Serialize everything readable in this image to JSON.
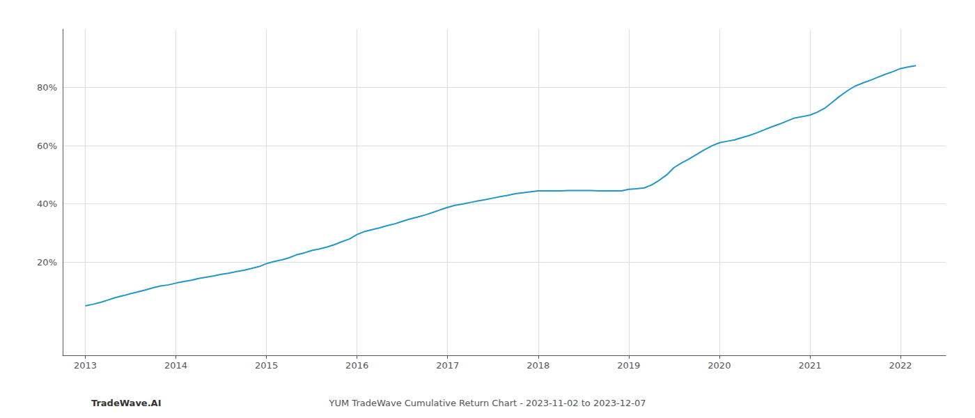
{
  "chart_data": {
    "type": "line",
    "title": "YUM TradeWave Cumulative Return Chart - 2023-11-02 to 2023-12-07",
    "annotations": [
      "TradeWave.AI"
    ],
    "x": [
      2013,
      2013.08,
      2013.17,
      2013.25,
      2013.33,
      2013.42,
      2013.5,
      2013.58,
      2013.67,
      2013.75,
      2013.83,
      2013.92,
      2014,
      2014.08,
      2014.17,
      2014.25,
      2014.33,
      2014.42,
      2014.5,
      2014.58,
      2014.67,
      2014.75,
      2014.83,
      2014.92,
      2015,
      2015.08,
      2015.17,
      2015.25,
      2015.33,
      2015.42,
      2015.5,
      2015.58,
      2015.67,
      2015.75,
      2015.83,
      2015.92,
      2016,
      2016.08,
      2016.17,
      2016.25,
      2016.33,
      2016.42,
      2016.5,
      2016.58,
      2016.67,
      2016.75,
      2016.83,
      2016.92,
      2017,
      2017.08,
      2017.17,
      2017.25,
      2017.33,
      2017.42,
      2017.5,
      2017.58,
      2017.67,
      2017.75,
      2017.83,
      2017.92,
      2018,
      2018.08,
      2018.17,
      2018.25,
      2018.33,
      2018.42,
      2018.5,
      2018.58,
      2018.67,
      2018.75,
      2018.83,
      2018.92,
      2019,
      2019.08,
      2019.17,
      2019.25,
      2019.33,
      2019.42,
      2019.5,
      2019.58,
      2019.67,
      2019.75,
      2019.83,
      2019.92,
      2020,
      2020.08,
      2020.17,
      2020.25,
      2020.33,
      2020.42,
      2020.5,
      2020.58,
      2020.67,
      2020.75,
      2020.83,
      2020.92,
      2021,
      2021.08,
      2021.17,
      2021.25,
      2021.33,
      2021.42,
      2021.5,
      2021.58,
      2021.67,
      2021.75,
      2021.83,
      2021.92,
      2022,
      2022.08,
      2022.17
    ],
    "values": [
      5,
      5.5,
      6.2,
      7.0,
      7.8,
      8.5,
      9.2,
      9.8,
      10.5,
      11.2,
      11.8,
      12.2,
      12.8,
      13.3,
      13.8,
      14.4,
      14.8,
      15.3,
      15.8,
      16.2,
      16.8,
      17.2,
      17.8,
      18.5,
      19.5,
      20.2,
      20.8,
      21.5,
      22.5,
      23.2,
      24.0,
      24.5,
      25.2,
      26.0,
      27.0,
      28.0,
      29.5,
      30.5,
      31.2,
      31.8,
      32.5,
      33.2,
      34.0,
      34.8,
      35.5,
      36.2,
      37.0,
      38.0,
      38.8,
      39.5,
      40.0,
      40.5,
      41.0,
      41.5,
      42.0,
      42.5,
      43.0,
      43.5,
      43.8,
      44.2,
      44.5,
      44.5,
      44.5,
      44.5,
      44.6,
      44.6,
      44.6,
      44.6,
      44.5,
      44.5,
      44.5,
      44.5,
      45.0,
      45.2,
      45.5,
      46.5,
      48.0,
      50.0,
      52.5,
      54.0,
      55.5,
      57.0,
      58.5,
      60.0,
      61.0,
      61.5,
      62.0,
      62.8,
      63.5,
      64.5,
      65.5,
      66.5,
      67.5,
      68.5,
      69.5,
      70.0,
      70.5,
      71.5,
      73.0,
      75.0,
      77.0,
      79.0,
      80.5,
      81.5,
      82.5,
      83.5,
      84.5,
      85.5,
      86.5,
      87.0,
      87.5
    ],
    "color": "#2196c8",
    "xlim": [
      2012.75,
      2022.5
    ],
    "xticks": [
      2013,
      2014,
      2015,
      2016,
      2017,
      2018,
      2019,
      2020,
      2021,
      2022
    ],
    "ylim": [
      -12,
      100
    ],
    "yticks": [
      {
        "value": 20,
        "label": "20%"
      },
      {
        "value": 40,
        "label": "40%"
      },
      {
        "value": 60,
        "label": "60%"
      },
      {
        "value": 80,
        "label": "80%"
      }
    ],
    "grid": true
  }
}
